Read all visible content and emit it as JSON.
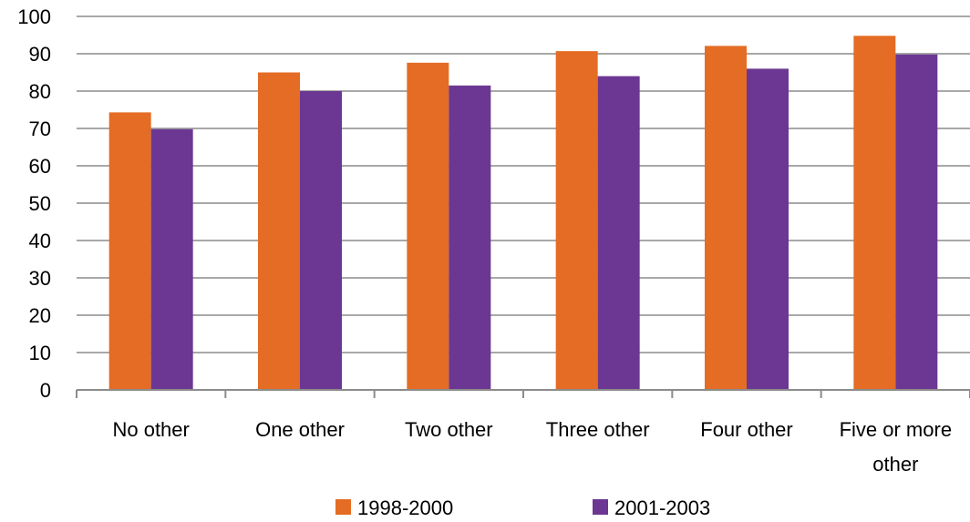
{
  "chart_data": {
    "type": "bar",
    "categories": [
      [
        "No other"
      ],
      [
        "One other"
      ],
      [
        "Two other"
      ],
      [
        "Three other"
      ],
      [
        "Four other"
      ],
      [
        "Five or more",
        "other"
      ]
    ],
    "series": [
      {
        "name": "1998-2000",
        "color": "#E46C24",
        "values": [
          74.3,
          85.0,
          87.6,
          90.7,
          92.1,
          94.8
        ]
      },
      {
        "name": "2001-2003",
        "color": "#6C3792",
        "values": [
          69.8,
          80.0,
          81.5,
          84.0,
          86.0,
          89.8
        ]
      }
    ],
    "ylim": [
      0,
      100
    ],
    "yticks": [
      0,
      10,
      20,
      30,
      40,
      50,
      60,
      70,
      80,
      90,
      100
    ],
    "grid": true,
    "legend": "bottom",
    "title": "",
    "xlabel": "",
    "ylabel": ""
  }
}
